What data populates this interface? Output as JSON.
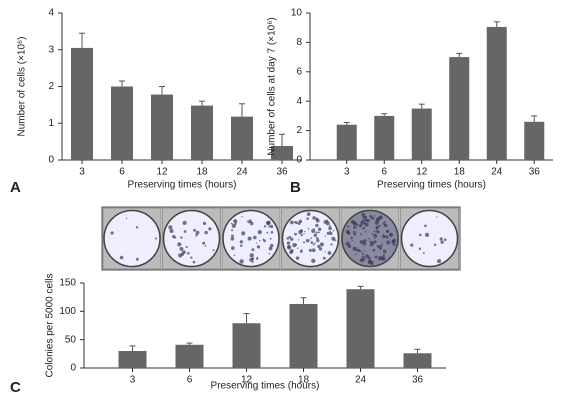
{
  "chart_data": [
    {
      "type": "bar",
      "panel": "A",
      "ylabel": "Number of cells (×10⁶)",
      "xlabel": "Preserving times (hours)",
      "categories": [
        "3",
        "6",
        "12",
        "18",
        "24",
        "36"
      ],
      "values": [
        3.05,
        2.0,
        1.78,
        1.48,
        1.18,
        0.38
      ],
      "errors": [
        0.4,
        0.15,
        0.22,
        0.12,
        0.35,
        0.32
      ],
      "color": "#666666",
      "ylim": [
        0,
        4
      ],
      "yticks": [
        0,
        1,
        2,
        3,
        4
      ]
    },
    {
      "type": "bar",
      "panel": "B",
      "ylabel": "Number of cells at day 7 (×10⁶)",
      "xlabel": "Preserving times (hours)",
      "categories": [
        "3",
        "6",
        "12",
        "18",
        "24",
        "36"
      ],
      "values": [
        2.4,
        3.0,
        3.5,
        7.0,
        9.05,
        2.6
      ],
      "errors": [
        0.15,
        0.15,
        0.3,
        0.25,
        0.35,
        0.4
      ],
      "color": "#666666",
      "ylim": [
        0,
        10
      ],
      "yticks": [
        0,
        2,
        4,
        6,
        8,
        10
      ]
    },
    {
      "type": "bar",
      "panel": "C",
      "ylabel": "Colonies per 5000 cells",
      "xlabel": "Preserving times (hours)",
      "categories": [
        "3",
        "6",
        "12",
        "18",
        "24",
        "36"
      ],
      "values": [
        30,
        41,
        79,
        113,
        139,
        26
      ],
      "errors": [
        9,
        3,
        17,
        11,
        5,
        7
      ],
      "color": "#666666",
      "ylim": [
        0,
        150
      ],
      "yticks": [
        0,
        50,
        100,
        150
      ]
    }
  ]
}
